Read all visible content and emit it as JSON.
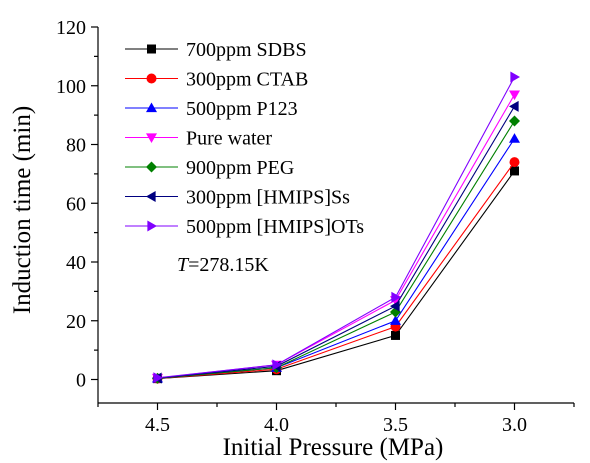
{
  "chart_data": {
    "type": "line",
    "xlabel": "Initial Pressure (MPa)",
    "ylabel": "Induction time (min)",
    "x": [
      4.5,
      4.0,
      3.5,
      3.0
    ],
    "x_tick_labels": [
      "4.5",
      "4.0",
      "3.5",
      "3.0"
    ],
    "xlim": [
      4.75,
      2.75
    ],
    "ylim": [
      -8,
      120
    ],
    "y_ticks": [
      0,
      20,
      40,
      60,
      80,
      100,
      120
    ],
    "grid": false,
    "legend_position": "top-left",
    "annotation": {
      "italic_part": "T",
      "rest": "=278.15K"
    },
    "series": [
      {
        "name": "700ppm SDBS",
        "color": "#000000",
        "marker": "square",
        "values": [
          0.3,
          3.0,
          15.0,
          71.0
        ]
      },
      {
        "name": "300ppm CTAB",
        "color": "#ff0000",
        "marker": "circle",
        "values": [
          0.3,
          3.5,
          18.0,
          74.0
        ]
      },
      {
        "name": "500ppm P123",
        "color": "#0000ff",
        "marker": "triangle-up",
        "values": [
          0.4,
          4.0,
          20.0,
          82.0
        ]
      },
      {
        "name": "Pure water",
        "color": "#ff00ff",
        "marker": "triangle-down",
        "values": [
          0.5,
          5.0,
          27.0,
          97.0
        ]
      },
      {
        "name": "900ppm PEG",
        "color": "#008000",
        "marker": "diamond",
        "values": [
          0.4,
          4.0,
          23.0,
          88.0
        ]
      },
      {
        "name": "300ppm [HMIPS]Ss",
        "color": "#000080",
        "marker": "triangle-left",
        "values": [
          0.5,
          4.5,
          25.0,
          93.0
        ]
      },
      {
        "name": "500ppm [HMIPS]OTs",
        "color": "#8000ff",
        "marker": "triangle-right",
        "values": [
          0.6,
          5.0,
          28.0,
          103.0
        ]
      }
    ]
  }
}
